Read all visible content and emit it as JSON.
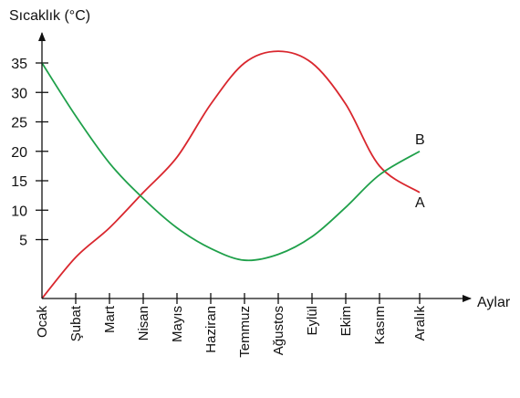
{
  "chart_data": {
    "type": "line",
    "ylabel": "Sıcaklık (°C)",
    "xlabel": "Aylar",
    "categories": [
      "Ocak",
      "Şubat",
      "Mart",
      "Nisan",
      "Mayıs",
      "Haziran",
      "Temmuz",
      "Ağustos",
      "Eylül",
      "Ekim",
      "Kasım",
      "Aralık"
    ],
    "yticks": [
      5,
      10,
      15,
      20,
      25,
      30,
      35
    ],
    "ylim": [
      -5,
      40
    ],
    "grid": false,
    "series": [
      {
        "name": "A",
        "color": "#d9272e",
        "values": [
          -5,
          2,
          7,
          13,
          19,
          28,
          35,
          37,
          35,
          28,
          17.5,
          13
        ]
      },
      {
        "name": "B",
        "color": "#1fa04a",
        "values": [
          35,
          26,
          18,
          12,
          7,
          3.5,
          1.5,
          2.5,
          5.5,
          10.5,
          16,
          20
        ]
      }
    ]
  }
}
